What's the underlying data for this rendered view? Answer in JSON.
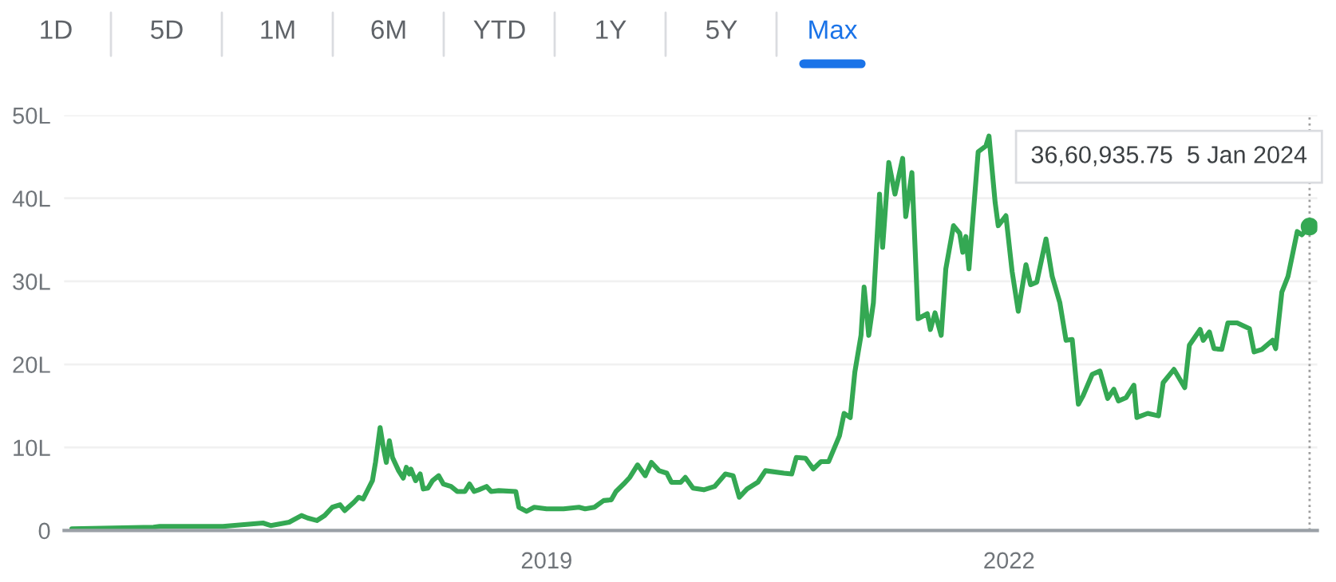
{
  "chart_data": {
    "type": "line",
    "x": [
      2015.92,
      2016.45,
      2016.49,
      2016.9,
      2017.16,
      2017.21,
      2017.33,
      2017.41,
      2017.45,
      2017.51,
      2017.56,
      2017.61,
      2017.66,
      2017.69,
      2017.75,
      2017.78,
      2017.81,
      2017.87,
      2017.89,
      2017.92,
      2017.94,
      2017.96,
      2017.98,
      2018.0,
      2018.04,
      2018.07,
      2018.09,
      2018.11,
      2018.12,
      2018.15,
      2018.18,
      2018.2,
      2018.23,
      2018.26,
      2018.3,
      2018.33,
      2018.38,
      2018.42,
      2018.47,
      2018.5,
      2018.53,
      2018.56,
      2018.61,
      2018.64,
      2018.69,
      2018.8,
      2018.82,
      2018.87,
      2018.92,
      2019.0,
      2019.11,
      2019.21,
      2019.25,
      2019.31,
      2019.37,
      2019.42,
      2019.45,
      2019.5,
      2019.54,
      2019.59,
      2019.64,
      2019.68,
      2019.73,
      2019.78,
      2019.81,
      2019.87,
      2019.9,
      2019.95,
      2020.02,
      2020.09,
      2020.16,
      2020.21,
      2020.25,
      2020.3,
      2020.37,
      2020.42,
      2020.54,
      2020.59,
      2020.62,
      2020.68,
      2020.73,
      2020.78,
      2020.83,
      2020.9,
      2020.93,
      2020.97,
      2021.0,
      2021.04,
      2021.06,
      2021.09,
      2021.12,
      2021.16,
      2021.18,
      2021.22,
      2021.26,
      2021.31,
      2021.33,
      2021.37,
      2021.41,
      2021.47,
      2021.49,
      2021.52,
      2021.56,
      2021.59,
      2021.64,
      2021.68,
      2021.7,
      2021.72,
      2021.74,
      2021.8,
      2021.85,
      2021.87,
      2021.91,
      2021.93,
      2021.98,
      2022.02,
      2022.06,
      2022.11,
      2022.14,
      2022.18,
      2022.24,
      2022.28,
      2022.33,
      2022.37,
      2022.41,
      2022.45,
      2022.48,
      2022.54,
      2022.59,
      2022.64,
      2022.68,
      2022.71,
      2022.76,
      2022.81,
      2022.83,
      2022.9,
      2022.97,
      2023.0,
      2023.07,
      2023.14,
      2023.17,
      2023.24,
      2023.26,
      2023.3,
      2023.33,
      2023.38,
      2023.42,
      2023.48,
      2023.56,
      2023.59,
      2023.64,
      2023.71,
      2023.73,
      2023.77,
      2023.81,
      2023.87,
      2023.9,
      2023.95
    ],
    "series": [
      {
        "color": "#34a853",
        "values": [
          0.2,
          0.4,
          0.5,
          0.5,
          0.9,
          0.6,
          1.0,
          1.8,
          1.5,
          1.2,
          1.8,
          2.8,
          3.1,
          2.4,
          3.4,
          4.0,
          3.8,
          6.0,
          8.2,
          12.4,
          10.1,
          8.2,
          10.8,
          8.8,
          7.2,
          6.3,
          7.6,
          6.8,
          7.4,
          6.0,
          6.8,
          5.0,
          5.1,
          6.0,
          6.6,
          5.6,
          5.3,
          4.7,
          4.7,
          5.6,
          4.7,
          4.9,
          5.3,
          4.7,
          4.8,
          4.7,
          2.8,
          2.3,
          2.8,
          2.6,
          2.6,
          2.8,
          2.6,
          2.8,
          3.6,
          3.7,
          4.7,
          5.6,
          6.4,
          7.9,
          6.6,
          8.2,
          7.2,
          6.9,
          5.8,
          5.8,
          6.4,
          5.1,
          4.9,
          5.3,
          6.8,
          6.6,
          4.0,
          5.0,
          5.8,
          7.2,
          6.9,
          6.8,
          8.8,
          8.7,
          7.4,
          8.3,
          8.3,
          11.4,
          14.1,
          13.6,
          19.1,
          23.5,
          29.3,
          23.5,
          27.4,
          40.5,
          34.1,
          44.3,
          40.5,
          44.8,
          37.8,
          43.1,
          25.5,
          26.1,
          24.2,
          26.2,
          23.5,
          31.5,
          36.7,
          35.8,
          33.5,
          35.4,
          31.5,
          45.6,
          46.3,
          47.5,
          39.5,
          36.7,
          37.9,
          31.2,
          26.4,
          32.0,
          29.6,
          29.9,
          35.1,
          30.6,
          27.4,
          22.9,
          23.0,
          15.2,
          16.2,
          18.8,
          19.2,
          15.9,
          17.0,
          15.6,
          16.0,
          17.5,
          13.6,
          14.1,
          13.8,
          17.8,
          19.4,
          17.2,
          22.3,
          24.2,
          22.9,
          23.9,
          21.9,
          21.8,
          25.0,
          25.0,
          24.3,
          21.5,
          21.8,
          22.9,
          21.9,
          28.7,
          30.6,
          36.0,
          35.6,
          36.6
        ]
      }
    ],
    "xlim": [
      2015.87,
      2024.0
    ],
    "xticks": [
      2019,
      2022
    ],
    "ylim": [
      0,
      50
    ],
    "yticks": [
      0,
      {
        "value": 10,
        "label": "10L"
      },
      {
        "value": 20,
        "label": "20L"
      },
      {
        "value": 30,
        "label": "30L"
      },
      {
        "value": 40,
        "label": "40L"
      },
      {
        "value": 50,
        "label": "50L"
      }
    ],
    "grid": "y",
    "ref_lines": [
      {
        "axis": "x",
        "value": 2023.95,
        "color": "#9e9e9e",
        "line_style": "dotted"
      }
    ],
    "annotations": [
      "1D",
      "5D",
      "1M",
      "6M",
      "YTD",
      "1Y",
      "5Y",
      "Max",
      "36,60,935.75  5 Jan 2024"
    ]
  }
}
